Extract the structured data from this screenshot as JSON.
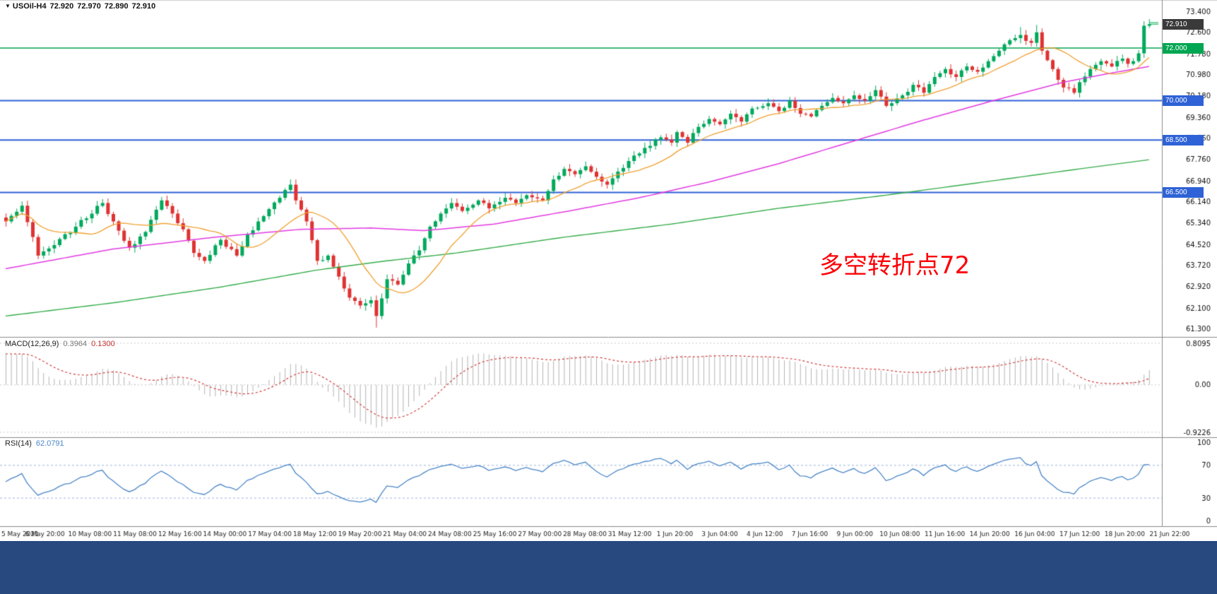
{
  "header": {
    "dropdown_glyph": "▼",
    "symbol": "USOil-H4",
    "open": "72.920",
    "high": "72.970",
    "low": "72.890",
    "close": "72.910"
  },
  "indicators": {
    "macd": {
      "label": "MACD(12,26,9)",
      "main_value": "0.3964",
      "signal_value": "0.1300",
      "axis_max": "0.8095",
      "axis_zero": "0.00",
      "axis_min": "-0.9226"
    },
    "rsi": {
      "label": "RSI(14)",
      "value": "62.0791",
      "axis_ticks": [
        "100",
        "70",
        "30",
        "0"
      ]
    }
  },
  "annotation": {
    "text": "多空转折点72",
    "color": "#fb0006"
  },
  "chart_data": {
    "type": "candlestick",
    "symbol": "USOil",
    "timeframe": "H4",
    "title": "USOil-H4",
    "ohlc_current": {
      "open": 72.92,
      "high": 72.97,
      "low": 72.89,
      "close": 72.91
    },
    "ylim": [
      61.3,
      73.4
    ],
    "price_ticks": [
      "73.400",
      "72.600",
      "71.780",
      "70.980",
      "70.180",
      "69.360",
      "68.560",
      "67.760",
      "66.940",
      "66.140",
      "65.340",
      "64.520",
      "63.720",
      "62.920",
      "62.100",
      "61.300"
    ],
    "time_labels": [
      "5 May 2021",
      "6 May 20:00",
      "10 May 08:00",
      "11 May 08:00",
      "12 May 16:00",
      "14 May 00:00",
      "17 May 04:00",
      "18 May 12:00",
      "19 May 20:00",
      "21 May 04:00",
      "24 May 08:00",
      "25 May 16:00",
      "27 May 00:00",
      "28 May 08:00",
      "31 May 12:00",
      "1 Jun 20:00",
      "3 Jun 04:00",
      "4 Jun 12:00",
      "7 Jun 16:00",
      "9 Jun 00:00",
      "10 Jun 08:00",
      "11 Jun 16:00",
      "14 Jun 20:00",
      "16 Jun 04:00",
      "17 Jun 12:00",
      "18 Jun 20:00",
      "21 Jun 22:00"
    ],
    "n_bars": 214,
    "up_color": "#00a95c",
    "down_color": "#e03232",
    "close_anchors": [
      [
        0,
        65.4
      ],
      [
        3,
        66.0
      ],
      [
        6,
        64.1
      ],
      [
        9,
        64.5
      ],
      [
        13,
        65.2
      ],
      [
        18,
        66.1
      ],
      [
        20,
        65.4
      ],
      [
        23,
        64.4
      ],
      [
        26,
        65.0
      ],
      [
        29,
        66.2
      ],
      [
        31,
        65.7
      ],
      [
        33,
        65.1
      ],
      [
        35,
        64.2
      ],
      [
        37,
        63.9
      ],
      [
        40,
        64.7
      ],
      [
        43,
        64.1
      ],
      [
        45,
        64.9
      ],
      [
        48,
        65.6
      ],
      [
        51,
        66.3
      ],
      [
        53,
        66.8
      ],
      [
        54,
        66.2
      ],
      [
        56,
        65.4
      ],
      [
        58,
        63.9
      ],
      [
        60,
        64.1
      ],
      [
        62,
        63.3
      ],
      [
        64,
        62.5
      ],
      [
        66,
        62.2
      ],
      [
        68,
        62.4
      ],
      [
        69,
        61.8
      ],
      [
        71,
        63.2
      ],
      [
        73,
        63.0
      ],
      [
        75,
        63.8
      ],
      [
        77,
        64.3
      ],
      [
        79,
        65.2
      ],
      [
        81,
        65.7
      ],
      [
        83,
        66.1
      ],
      [
        85,
        65.8
      ],
      [
        88,
        66.2
      ],
      [
        90,
        65.9
      ],
      [
        93,
        66.3
      ],
      [
        95,
        66.1
      ],
      [
        97,
        66.4
      ],
      [
        100,
        66.2
      ],
      [
        102,
        67.0
      ],
      [
        104,
        67.4
      ],
      [
        106,
        67.2
      ],
      [
        108,
        67.5
      ],
      [
        110,
        67.1
      ],
      [
        112,
        66.8
      ],
      [
        114,
        67.3
      ],
      [
        116,
        67.7
      ],
      [
        119,
        68.2
      ],
      [
        122,
        68.6
      ],
      [
        124,
        68.4
      ],
      [
        125,
        68.8
      ],
      [
        127,
        68.4
      ],
      [
        129,
        69.0
      ],
      [
        131,
        69.3
      ],
      [
        133,
        69.1
      ],
      [
        135,
        69.5
      ],
      [
        137,
        69.2
      ],
      [
        139,
        69.7
      ],
      [
        142,
        69.9
      ],
      [
        144,
        69.6
      ],
      [
        146,
        70.0
      ],
      [
        148,
        69.5
      ],
      [
        150,
        69.4
      ],
      [
        152,
        69.8
      ],
      [
        154,
        70.1
      ],
      [
        156,
        69.9
      ],
      [
        158,
        70.2
      ],
      [
        160,
        70.0
      ],
      [
        162,
        70.4
      ],
      [
        164,
        69.8
      ],
      [
        167,
        70.2
      ],
      [
        169,
        70.6
      ],
      [
        171,
        70.3
      ],
      [
        173,
        70.9
      ],
      [
        175,
        71.2
      ],
      [
        177,
        70.9
      ],
      [
        179,
        71.3
      ],
      [
        181,
        71.1
      ],
      [
        183,
        71.5
      ],
      [
        185,
        71.9
      ],
      [
        187,
        72.3
      ],
      [
        189,
        72.5
      ],
      [
        191,
        72.2
      ],
      [
        192,
        72.6
      ],
      [
        193,
        71.9
      ],
      [
        195,
        71.2
      ],
      [
        197,
        70.5
      ],
      [
        199,
        70.3
      ],
      [
        200,
        70.7
      ],
      [
        202,
        71.2
      ],
      [
        204,
        71.5
      ],
      [
        206,
        71.3
      ],
      [
        208,
        71.6
      ],
      [
        209,
        71.4
      ],
      [
        210,
        71.5
      ],
      [
        211,
        71.8
      ],
      [
        212,
        72.85
      ],
      [
        213,
        72.91
      ]
    ],
    "horizontal_lines": [
      {
        "price": 72.0,
        "label": "72.000",
        "color": "#00a651",
        "width": 1.6
      },
      {
        "price": 70.0,
        "label": "70.000",
        "color": "#2e62d6",
        "width": 2
      },
      {
        "price": 68.5,
        "label": "68.500",
        "color": "#2e62d6",
        "width": 2
      },
      {
        "price": 66.5,
        "label": "66.500",
        "color": "#2e62d6",
        "width": 2
      }
    ],
    "current_price_badge": {
      "price": 72.91,
      "label": "72.910",
      "color": "#3a3a3a"
    },
    "moving_averages": {
      "fast": {
        "name": "MA fast",
        "color": "#f0a030",
        "type": "sma",
        "period": 13
      },
      "mid": {
        "name": "MA mid",
        "color": "#e23ae2",
        "anchors": [
          [
            0,
            63.6
          ],
          [
            20,
            64.35
          ],
          [
            39,
            64.8
          ],
          [
            55,
            65.1
          ],
          [
            68,
            65.15
          ],
          [
            78,
            65.05
          ],
          [
            91,
            65.3
          ],
          [
            105,
            65.8
          ],
          [
            118,
            66.3
          ],
          [
            131,
            66.9
          ],
          [
            144,
            67.6
          ],
          [
            157,
            68.4
          ],
          [
            170,
            69.2
          ],
          [
            184,
            70.0
          ],
          [
            197,
            70.7
          ],
          [
            206,
            71.05
          ],
          [
            213,
            71.3
          ]
        ]
      },
      "slow": {
        "name": "MA slow",
        "color": "#35ad4a",
        "anchors": [
          [
            0,
            61.8
          ],
          [
            20,
            62.3
          ],
          [
            40,
            62.9
          ],
          [
            58,
            63.55
          ],
          [
            71,
            63.9
          ],
          [
            84,
            64.2
          ],
          [
            104,
            64.8
          ],
          [
            124,
            65.3
          ],
          [
            144,
            65.9
          ],
          [
            164,
            66.4
          ],
          [
            184,
            66.95
          ],
          [
            200,
            67.4
          ],
          [
            213,
            67.75
          ]
        ]
      }
    },
    "macd": {
      "params": [
        12,
        26,
        9
      ],
      "current_main": 0.3964,
      "current_signal": 0.13,
      "range": [
        -0.9226,
        0.8095
      ],
      "histogram_color": "#b4b4b4",
      "signal_color": "#d23b3b"
    },
    "rsi": {
      "period": 14,
      "current": 62.0791,
      "range": [
        0,
        100
      ],
      "levels": [
        70,
        30
      ],
      "line_color": "#4a86c8",
      "level_color": "#9db5de"
    }
  }
}
